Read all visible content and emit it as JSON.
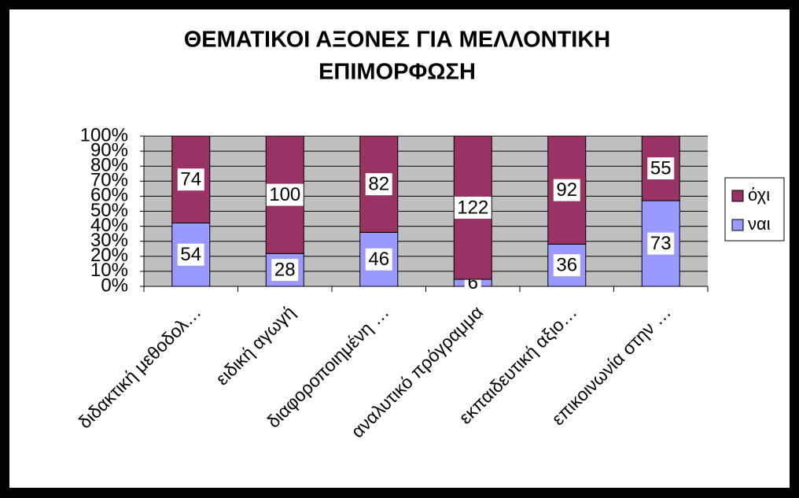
{
  "chart_data": {
    "type": "bar",
    "stacked": "percent",
    "title": [
      "ΘΕΜΑΤΙΚΟΙ ΑΞΟΝΕΣ ΓΙΑ ΜΕΛΛΟΝΤΙΚΗ",
      "ΕΠΙΜΟΡΦΩΣΗ"
    ],
    "categories": [
      "διδακτική μεθοδολ…",
      "ειδική αγωγή",
      "διαφοροποιημένη …",
      "αναλυτικό πρόγραμμα",
      "εκπαιδευτική αξιο…",
      "επικοινωνία στην …"
    ],
    "series": [
      {
        "name": "ναι",
        "color": "#9999ff",
        "values": [
          54,
          28,
          46,
          6,
          36,
          73
        ]
      },
      {
        "name": "όχι",
        "color": "#993366",
        "values": [
          74,
          100,
          82,
          122,
          92,
          55
        ]
      }
    ],
    "ylim": [
      0,
      100
    ],
    "yticks": [
      {
        "value": 0,
        "label": "0%"
      },
      {
        "value": 10,
        "label": "10%"
      },
      {
        "value": 20,
        "label": "20%"
      },
      {
        "value": 30,
        "label": "30%"
      },
      {
        "value": 40,
        "label": "40%"
      },
      {
        "value": 50,
        "label": "50%"
      },
      {
        "value": 60,
        "label": "60%"
      },
      {
        "value": 70,
        "label": "70%"
      },
      {
        "value": 80,
        "label": "80%"
      },
      {
        "value": 90,
        "label": "90%"
      },
      {
        "value": 100,
        "label": "100%"
      }
    ],
    "grid": true,
    "legend": "right"
  }
}
